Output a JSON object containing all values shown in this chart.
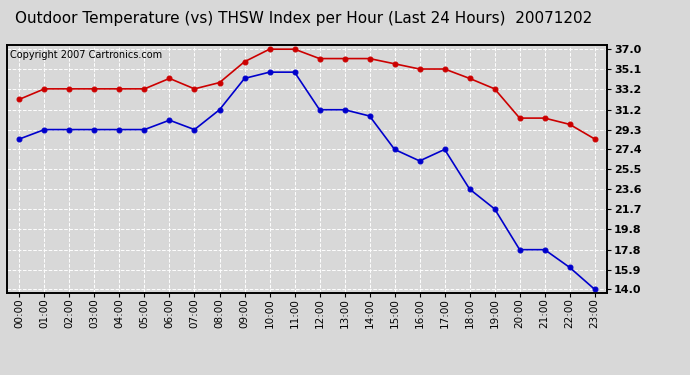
{
  "title": "Outdoor Temperature (vs) THSW Index per Hour (Last 24 Hours)  20071202",
  "copyright": "Copyright 2007 Cartronics.com",
  "hours": [
    "00:00",
    "01:00",
    "02:00",
    "03:00",
    "04:00",
    "05:00",
    "06:00",
    "07:00",
    "08:00",
    "09:00",
    "10:00",
    "11:00",
    "12:00",
    "13:00",
    "14:00",
    "15:00",
    "16:00",
    "17:00",
    "18:00",
    "19:00",
    "20:00",
    "21:00",
    "22:00",
    "23:00"
  ],
  "red_data": [
    32.2,
    33.2,
    33.2,
    33.2,
    33.2,
    33.2,
    34.2,
    33.2,
    33.8,
    35.8,
    37.0,
    37.0,
    36.1,
    36.1,
    36.1,
    35.6,
    35.1,
    35.1,
    34.2,
    33.2,
    30.4,
    30.4,
    29.8,
    28.4
  ],
  "blue_data": [
    28.4,
    29.3,
    29.3,
    29.3,
    29.3,
    29.3,
    30.2,
    29.3,
    31.2,
    34.2,
    34.8,
    34.8,
    31.2,
    31.2,
    30.6,
    27.4,
    26.3,
    27.4,
    23.6,
    21.7,
    17.8,
    17.8,
    16.1,
    14.0
  ],
  "yticks": [
    14.0,
    15.9,
    17.8,
    19.8,
    21.7,
    23.6,
    25.5,
    27.4,
    29.3,
    31.2,
    33.2,
    35.1,
    37.0
  ],
  "ymin": 13.7,
  "ymax": 37.4,
  "red_color": "#cc0000",
  "blue_color": "#0000cc",
  "plot_bg_color": "#d8d8d8",
  "fig_bg_color": "#d8d8d8",
  "title_fontsize": 11,
  "copyright_fontsize": 7,
  "tick_fontsize": 8,
  "xtick_fontsize": 7.5
}
